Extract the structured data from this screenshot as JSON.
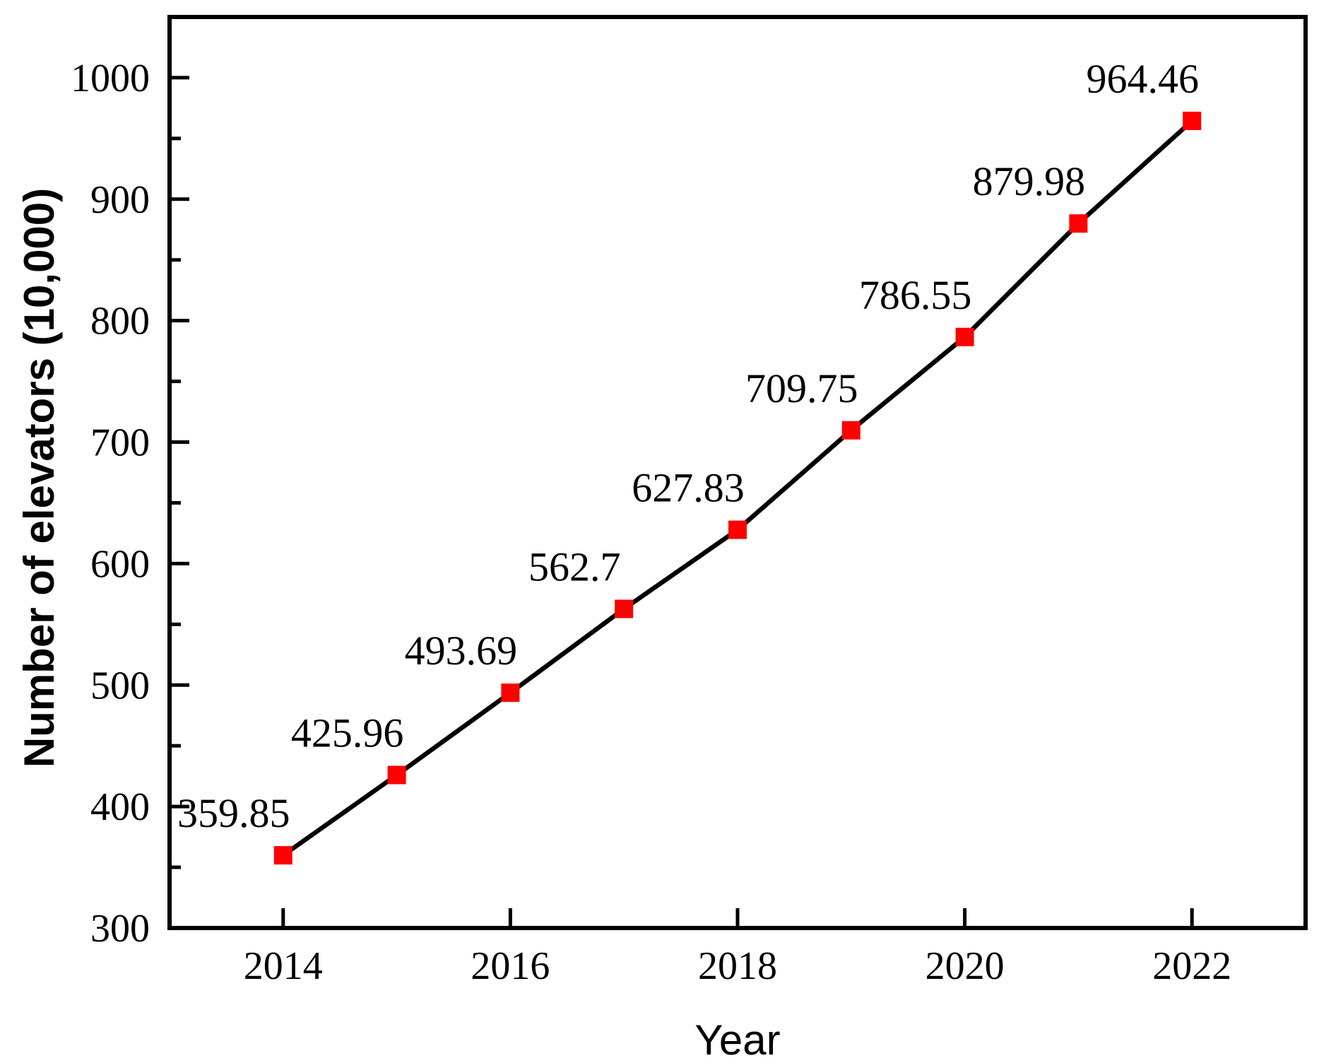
{
  "chart_data": {
    "type": "line",
    "title": "",
    "xlabel": "Year",
    "ylabel": "Number of elevators (10,000)",
    "x": [
      2014,
      2015,
      2016,
      2017,
      2018,
      2019,
      2020,
      2021,
      2022
    ],
    "series": [
      {
        "name": "Number of elevators",
        "values": [
          359.85,
          425.96,
          493.69,
          562.7,
          627.83,
          709.75,
          786.55,
          879.98,
          964.46
        ]
      }
    ],
    "point_labels": [
      "359.85",
      "425.96",
      "493.69",
      "562.7",
      "627.83",
      "709.75",
      "786.55",
      "879.98",
      "964.46"
    ],
    "xlim": [
      2013,
      2023
    ],
    "ylim": [
      300,
      1050
    ],
    "x_ticks": [
      2014,
      2016,
      2018,
      2020,
      2022
    ],
    "y_ticks": [
      300,
      400,
      500,
      600,
      700,
      800,
      900,
      1000
    ],
    "y_minor_ticks": [
      350,
      450,
      550,
      650,
      750,
      850,
      950
    ],
    "grid": false,
    "legend_position": "none",
    "colors": {
      "line": "#000000",
      "marker": "#fe0000",
      "axis": "#000000",
      "text": "#000000",
      "background": "#ffffff"
    },
    "marker_shape": "square"
  }
}
